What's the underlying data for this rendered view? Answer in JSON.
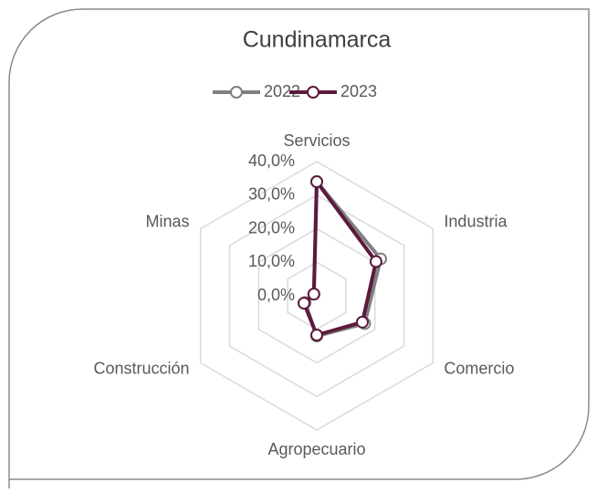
{
  "chart_data": {
    "type": "radar",
    "title": "Cundinamarca",
    "categories": [
      "Servicios",
      "Industria",
      "Comercio",
      "Agropecuario",
      "Construcción",
      "Minas"
    ],
    "series": [
      {
        "name": "2022",
        "color": "#808080",
        "values": [
          34,
          22,
          16.5,
          12,
          4,
          1
        ]
      },
      {
        "name": "2023",
        "color": "#5c1a3c",
        "values": [
          34,
          20.4,
          15.7,
          11.7,
          4.4,
          1
        ]
      }
    ],
    "ylim": [
      0,
      40
    ],
    "yticks": [
      {
        "value": 0,
        "label": "0,0%"
      },
      {
        "value": 10,
        "label": "10,0%"
      },
      {
        "value": 20,
        "label": "20,0%"
      },
      {
        "value": 30,
        "label": "30,0%"
      },
      {
        "value": 40,
        "label": "40,0%"
      }
    ],
    "grid": true,
    "legend": "top"
  }
}
